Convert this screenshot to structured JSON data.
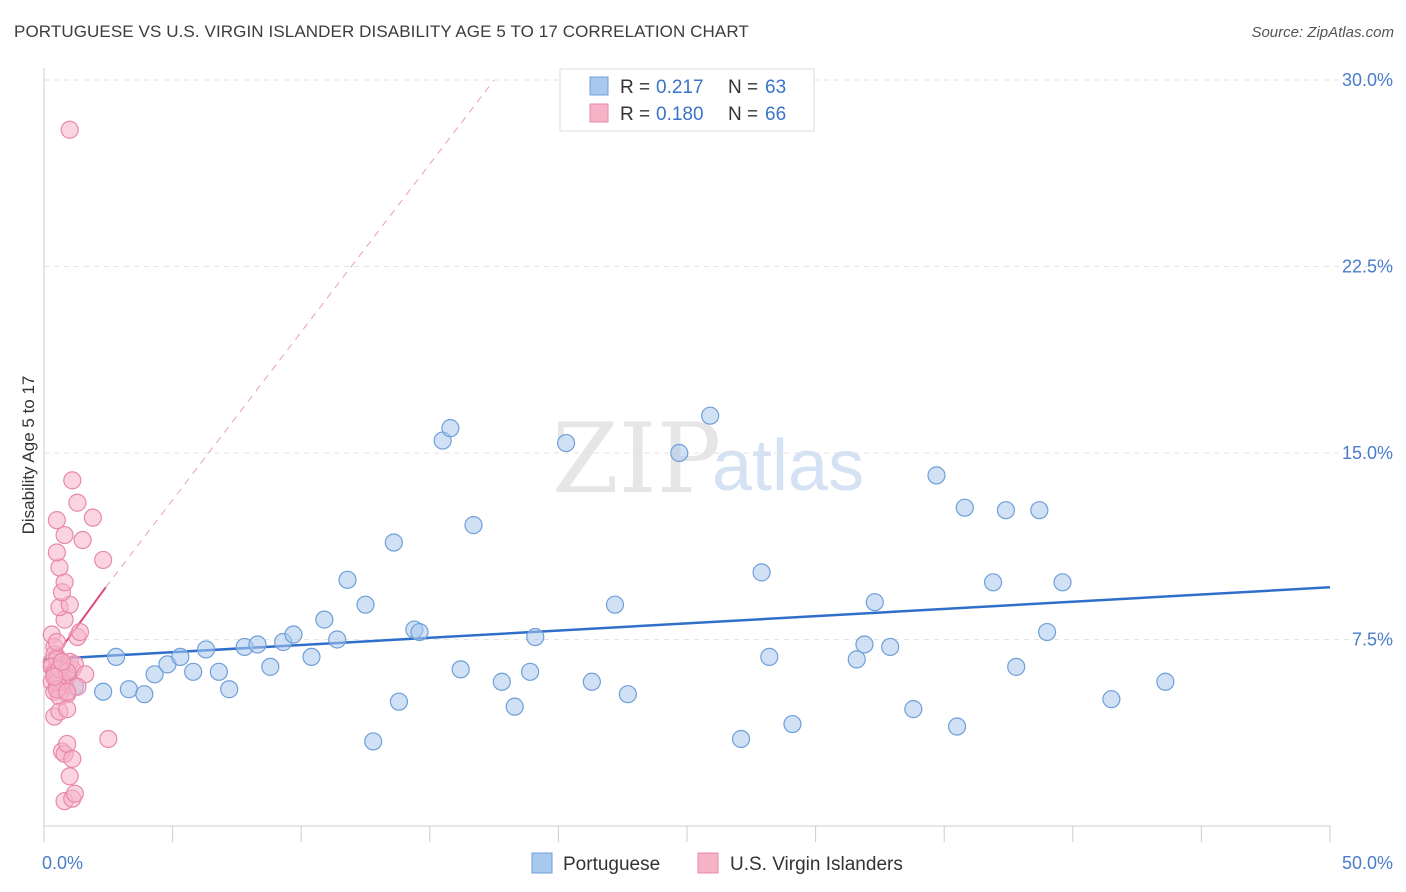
{
  "header": {
    "title": "PORTUGUESE VS U.S. VIRGIN ISLANDER DISABILITY AGE 5 TO 17 CORRELATION CHART",
    "source": "Source: ZipAtlas.com"
  },
  "watermark": {
    "zip": "ZIP",
    "atlas": "atlas"
  },
  "colors": {
    "blue_fill": "#a9c8ee",
    "blue_stroke": "#6f9fd8",
    "blue_line": "#2f6fca",
    "pink_fill": "#f5b3c8",
    "pink_stroke": "#e889a8",
    "pink_line": "#e0487a",
    "tick_text": "#4a7cc9",
    "grid": "#e3e3e3"
  },
  "chart_data": {
    "type": "scatter",
    "title": "PORTUGUESE VS U.S. VIRGIN ISLANDER DISABILITY AGE 5 TO 17 CORRELATION CHART",
    "xlabel": "",
    "ylabel": "Disability Age 5 to 17",
    "xlim": [
      0,
      50
    ],
    "ylim": [
      0,
      30
    ],
    "x_tick_labels": [
      "0.0%",
      "50.0%"
    ],
    "y_ticks": [
      7.5,
      15.0,
      22.5,
      30.0
    ],
    "y_tick_labels": [
      "7.5%",
      "15.0%",
      "22.5%",
      "30.0%"
    ],
    "grid": true,
    "legend": {
      "placement": "top-center",
      "entries": [
        {
          "r_label": "R =",
          "r_value": "0.217",
          "n_label": "N =",
          "n_value": "63"
        },
        {
          "r_label": "R =",
          "r_value": "0.180",
          "n_label": "N =",
          "n_value": "66"
        }
      ]
    },
    "bottom_legend": [
      "Portuguese",
      "U.S. Virgin Islanders"
    ],
    "series": [
      {
        "name": "Portuguese",
        "color": "blue",
        "trend": {
          "x": [
            0,
            50
          ],
          "y": [
            6.7,
            9.6
          ]
        },
        "points": [
          [
            0.6,
            5.6
          ],
          [
            0.8,
            5.9
          ],
          [
            1.2,
            5.6
          ],
          [
            2.3,
            5.4
          ],
          [
            2.8,
            6.8
          ],
          [
            3.3,
            5.5
          ],
          [
            3.9,
            5.3
          ],
          [
            4.3,
            6.1
          ],
          [
            4.8,
            6.5
          ],
          [
            5.3,
            6.8
          ],
          [
            5.8,
            6.2
          ],
          [
            6.3,
            7.1
          ],
          [
            6.8,
            6.2
          ],
          [
            7.2,
            5.5
          ],
          [
            7.8,
            7.2
          ],
          [
            8.3,
            7.3
          ],
          [
            8.8,
            6.4
          ],
          [
            9.3,
            7.4
          ],
          [
            9.7,
            7.7
          ],
          [
            10.4,
            6.8
          ],
          [
            10.9,
            8.3
          ],
          [
            11.4,
            7.5
          ],
          [
            11.8,
            9.9
          ],
          [
            12.5,
            8.9
          ],
          [
            12.8,
            3.4
          ],
          [
            13.6,
            11.4
          ],
          [
            13.8,
            5.0
          ],
          [
            14.4,
            7.9
          ],
          [
            14.6,
            7.8
          ],
          [
            15.5,
            15.5
          ],
          [
            15.8,
            16.0
          ],
          [
            16.2,
            6.3
          ],
          [
            16.7,
            12.1
          ],
          [
            17.8,
            5.8
          ],
          [
            18.3,
            4.8
          ],
          [
            18.9,
            6.2
          ],
          [
            19.1,
            7.6
          ],
          [
            20.3,
            15.4
          ],
          [
            21.3,
            5.8
          ],
          [
            22.2,
            8.9
          ],
          [
            22.7,
            5.3
          ],
          [
            24.7,
            15.0
          ],
          [
            25.9,
            16.5
          ],
          [
            27.1,
            3.5
          ],
          [
            27.9,
            10.2
          ],
          [
            28.2,
            6.8
          ],
          [
            29.1,
            4.1
          ],
          [
            31.6,
            6.7
          ],
          [
            31.9,
            7.3
          ],
          [
            32.3,
            9.0
          ],
          [
            32.9,
            7.2
          ],
          [
            33.8,
            4.7
          ],
          [
            34.7,
            14.1
          ],
          [
            35.5,
            4.0
          ],
          [
            35.8,
            12.8
          ],
          [
            36.9,
            9.8
          ],
          [
            37.4,
            12.7
          ],
          [
            37.8,
            6.4
          ],
          [
            38.7,
            12.7
          ],
          [
            39.0,
            7.8
          ],
          [
            39.6,
            9.8
          ],
          [
            41.5,
            5.1
          ],
          [
            43.6,
            5.8
          ]
        ]
      },
      {
        "name": "U.S. Virgin Islanders",
        "color": "pink",
        "trend": {
          "x": [
            0,
            2.4
          ],
          "y": [
            6.2,
            9.6
          ]
        },
        "trend_extension": {
          "x": [
            2.4,
            17.5
          ],
          "y": [
            9.6,
            30.0
          ]
        },
        "points": [
          [
            0.3,
            7.7
          ],
          [
            0.4,
            7.2
          ],
          [
            0.5,
            6.8
          ],
          [
            0.3,
            6.6
          ],
          [
            0.6,
            6.4
          ],
          [
            0.4,
            6.2
          ],
          [
            0.7,
            6.1
          ],
          [
            0.5,
            6.0
          ],
          [
            0.6,
            5.9
          ],
          [
            0.3,
            5.8
          ],
          [
            0.8,
            5.7
          ],
          [
            0.5,
            5.6
          ],
          [
            0.7,
            5.5
          ],
          [
            0.4,
            5.4
          ],
          [
            0.9,
            5.3
          ],
          [
            0.6,
            5.2
          ],
          [
            0.4,
            6.9
          ],
          [
            0.8,
            6.5
          ],
          [
            1.1,
            6.3
          ],
          [
            0.6,
            5.9
          ],
          [
            0.9,
            6.0
          ],
          [
            0.5,
            6.7
          ],
          [
            1.0,
            6.6
          ],
          [
            0.7,
            5.8
          ],
          [
            0.3,
            6.4
          ],
          [
            1.2,
            6.5
          ],
          [
            0.5,
            7.4
          ],
          [
            1.3,
            7.6
          ],
          [
            1.4,
            7.8
          ],
          [
            0.8,
            8.3
          ],
          [
            0.6,
            8.8
          ],
          [
            1.0,
            8.9
          ],
          [
            0.7,
            9.4
          ],
          [
            0.8,
            9.8
          ],
          [
            0.6,
            10.4
          ],
          [
            0.5,
            11.0
          ],
          [
            0.8,
            11.7
          ],
          [
            1.5,
            11.5
          ],
          [
            0.5,
            12.3
          ],
          [
            1.3,
            13.0
          ],
          [
            1.9,
            12.4
          ],
          [
            1.1,
            13.9
          ],
          [
            2.3,
            10.7
          ],
          [
            0.4,
            4.4
          ],
          [
            0.6,
            4.6
          ],
          [
            0.9,
            4.7
          ],
          [
            0.7,
            3.0
          ],
          [
            0.8,
            2.9
          ],
          [
            0.9,
            3.3
          ],
          [
            1.1,
            2.7
          ],
          [
            2.5,
            3.5
          ],
          [
            1.0,
            2.0
          ],
          [
            0.8,
            1.0
          ],
          [
            1.1,
            1.1
          ],
          [
            1.2,
            1.3
          ],
          [
            1.0,
            28.0
          ],
          [
            1.6,
            6.1
          ],
          [
            1.3,
            5.6
          ],
          [
            0.4,
            6.1
          ],
          [
            0.5,
            5.8
          ],
          [
            0.6,
            6.3
          ],
          [
            0.9,
            6.2
          ],
          [
            0.7,
            6.6
          ],
          [
            0.5,
            5.5
          ],
          [
            0.9,
            5.4
          ],
          [
            0.4,
            6.0
          ]
        ]
      }
    ]
  }
}
